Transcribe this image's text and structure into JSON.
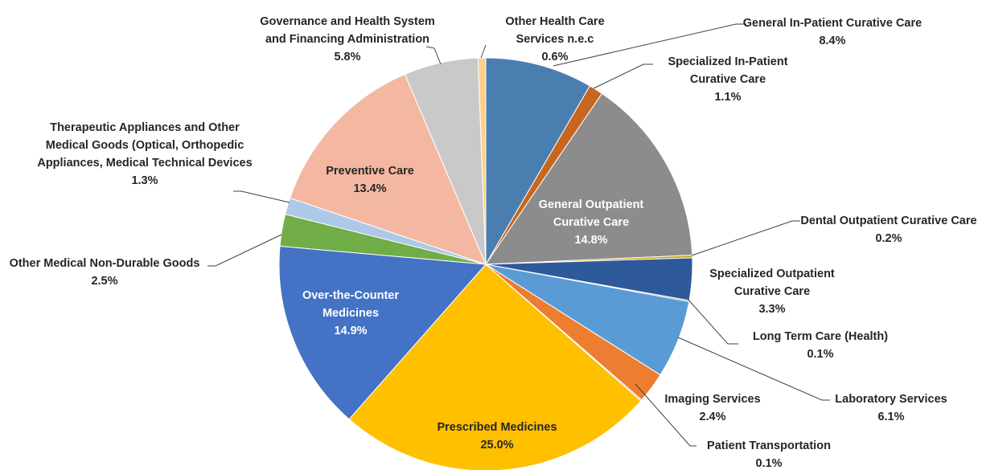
{
  "chart_data": {
    "type": "pie",
    "categories": [
      "General In-Patient Curative Care",
      "Specialized In-Patient Curative Care",
      "General Outpatient Curative Care",
      "Dental Outpatient Curative Care",
      "Specialized Outpatient Curative Care",
      "Long Term Care (Health)",
      "Laboratory Services",
      "Imaging Services",
      "Patient Transportation",
      "Prescribed Medicines",
      "Over-the-Counter Medicines",
      "Other Medical Non-Durable Goods",
      "Therapeutic Appliances and Other Medical Goods (Optical, Orthopedic Appliances, Medical Technical Devices",
      "Preventive Care",
      "Governance and Health System and Financing Administration",
      "Other Health Care Services n.e.c"
    ],
    "values": [
      8.4,
      1.1,
      14.8,
      0.2,
      3.3,
      0.1,
      6.1,
      2.4,
      0.1,
      25.0,
      14.9,
      2.5,
      1.3,
      13.4,
      5.8,
      0.6
    ],
    "value_labels": [
      "8.4%",
      "1.1%",
      "14.8%",
      "0.2%",
      "3.3%",
      "0.1%",
      "6.1%",
      "2.4%",
      "0.1%",
      "25.0%",
      "14.9%",
      "2.5%",
      "1.3%",
      "13.4%",
      "5.8%",
      "0.6%"
    ],
    "colors": [
      "#4a7eb1",
      "#c8651e",
      "#8c8c8c",
      "#c9a000",
      "#2e5a9c",
      "#5e8e3c",
      "#5b9bd5",
      "#ed7d31",
      "#a5a5a5",
      "#ffc000",
      "#4472c4",
      "#70ad47",
      "#aec8e8",
      "#f4b8a2",
      "#c9c9c9",
      "#ffd08a"
    ]
  }
}
